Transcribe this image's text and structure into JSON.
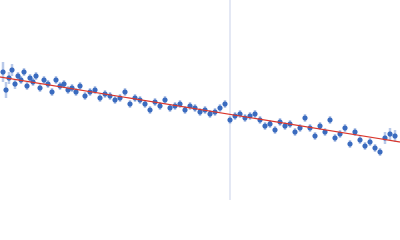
{
  "chart_data": {
    "type": "scatter",
    "xlim": [
      0,
      400
    ],
    "ylim": [
      0,
      200
    ],
    "vline": {
      "x": 230,
      "color": "#c9d2ea"
    },
    "series": [
      {
        "color": "#3a6bbf",
        "error_color": "#b9c9e9",
        "x": [
          3,
          6,
          9,
          12,
          15,
          18,
          21,
          24,
          27,
          30,
          33,
          36,
          40,
          44,
          48,
          52,
          56,
          60,
          64,
          68,
          72,
          76,
          80,
          85,
          90,
          95,
          100,
          105,
          110,
          115,
          120,
          125,
          130,
          135,
          140,
          145,
          150,
          155,
          160,
          165,
          170,
          175,
          180,
          185,
          190,
          195,
          200,
          205,
          210,
          215,
          220,
          225,
          230,
          235,
          240,
          245,
          250,
          255,
          260,
          265,
          270,
          275,
          280,
          285,
          290,
          295,
          300,
          305,
          310,
          315,
          320,
          325,
          330,
          335,
          340,
          345,
          350,
          355,
          360,
          365,
          370,
          375,
          380,
          385,
          390,
          395
        ],
        "y": [
          128,
          110,
          122,
          130,
          116,
          124,
          120,
          128,
          114,
          122,
          118,
          124,
          112,
          120,
          116,
          108,
          120,
          114,
          116,
          110,
          112,
          108,
          114,
          104,
          108,
          110,
          102,
          106,
          104,
          100,
          102,
          108,
          96,
          102,
          100,
          96,
          90,
          98,
          94,
          100,
          92,
          94,
          96,
          90,
          94,
          92,
          88,
          90,
          86,
          88,
          92,
          96,
          80,
          84,
          86,
          82,
          84,
          86,
          80,
          74,
          76,
          70,
          78,
          74,
          76,
          68,
          72,
          82,
          72,
          64,
          74,
          68,
          80,
          62,
          66,
          72,
          56,
          68,
          60,
          54,
          58,
          52,
          48,
          62,
          66,
          64
        ],
        "errors": [
          10,
          8,
          6,
          6,
          5,
          4,
          4,
          4,
          4,
          4,
          4,
          4,
          4,
          4,
          4,
          4,
          4,
          4,
          4,
          4,
          4,
          4,
          4,
          4,
          4,
          4,
          4,
          4,
          4,
          4,
          4,
          4,
          4,
          4,
          4,
          4,
          4,
          4,
          4,
          4,
          4,
          4,
          4,
          4,
          4,
          4,
          4,
          4,
          4,
          4,
          4,
          4,
          4,
          4,
          4,
          4,
          4,
          4,
          4,
          4,
          4,
          4,
          4,
          4,
          4,
          4,
          4,
          4,
          4,
          4,
          4,
          4,
          4,
          4,
          4,
          4,
          4,
          4,
          4,
          4,
          4,
          4,
          4,
          6,
          6,
          6
        ]
      }
    ],
    "fit_line": {
      "color": "#d9352b",
      "x": [
        0,
        400
      ],
      "y": [
        123,
        58
      ]
    }
  }
}
